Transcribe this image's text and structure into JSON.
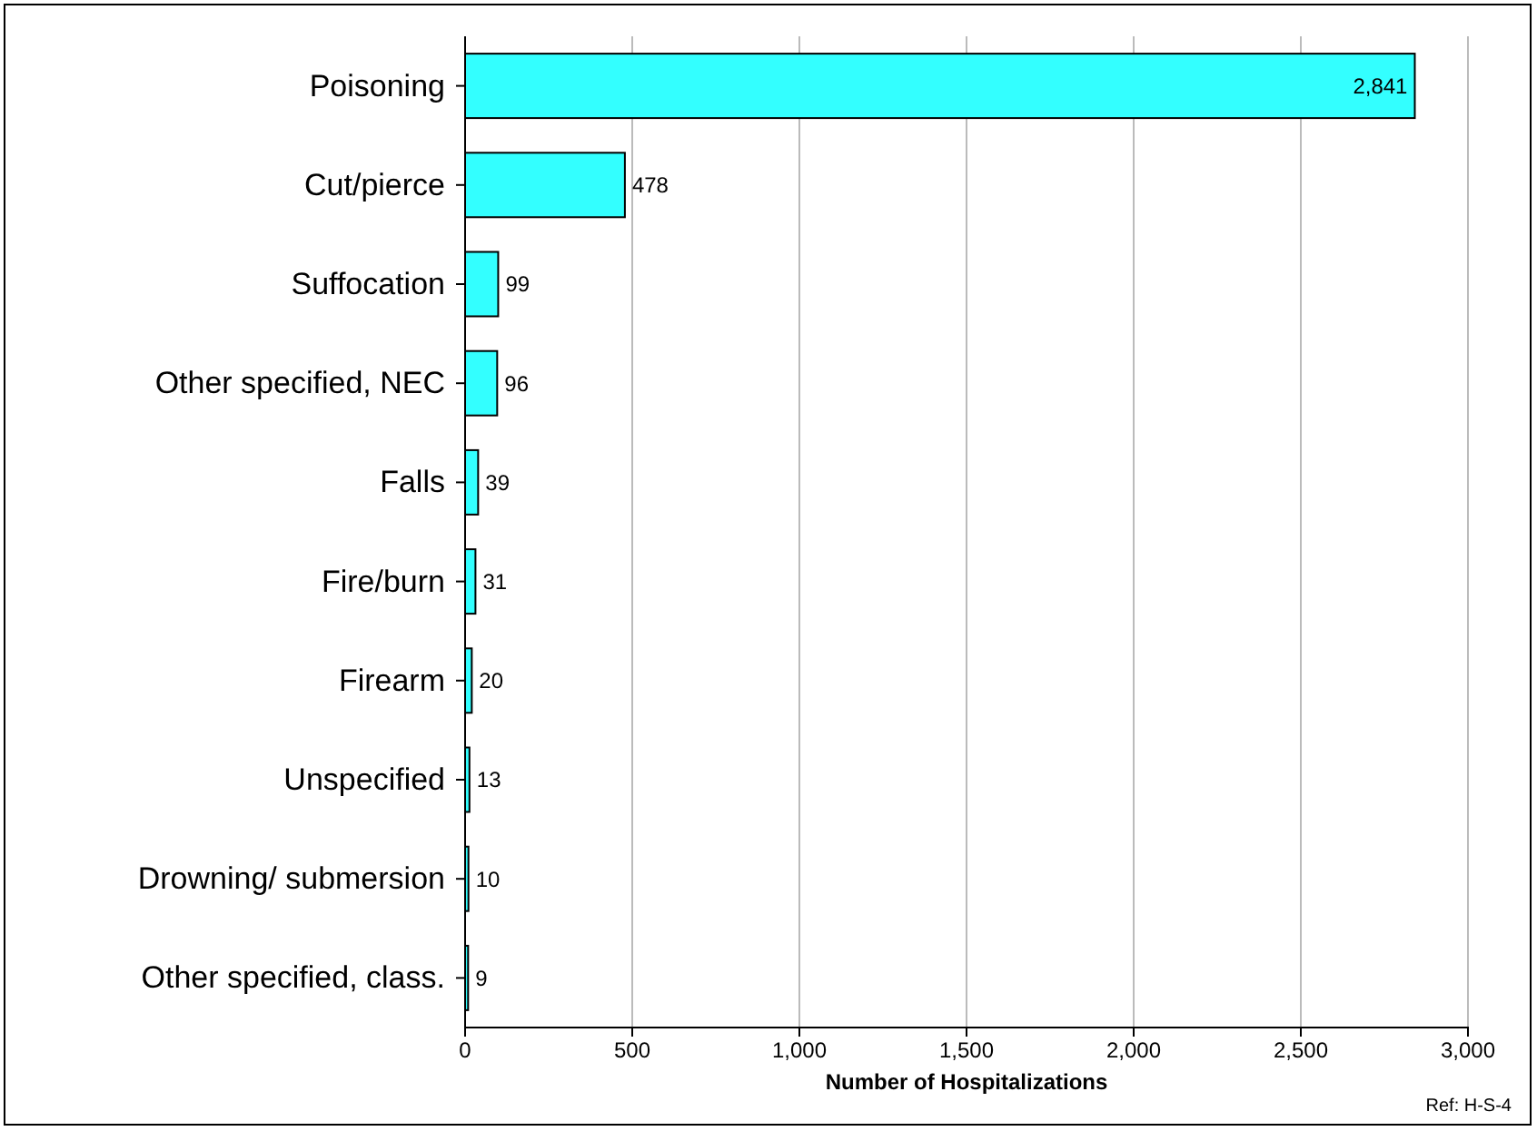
{
  "chart_data": {
    "type": "bar",
    "orientation": "horizontal",
    "categories": [
      "Poisoning",
      "Cut/pierce",
      "Suffocation",
      "Other specified, NEC",
      "Falls",
      "Fire/burn",
      "Firearm",
      "Unspecified",
      "Drowning/ submersion",
      "Other specified, class."
    ],
    "values": [
      2841,
      478,
      99,
      96,
      39,
      31,
      20,
      13,
      10,
      9
    ],
    "value_labels": [
      "2,841",
      "478",
      "99",
      "96",
      "39",
      "31",
      "20",
      "13",
      "10",
      "9"
    ],
    "color": "#33ffff",
    "xlabel": "Number of Hospitalizations",
    "xlim": [
      0,
      3000
    ],
    "xticks": [
      0,
      {
        "value": 500,
        "label": "500"
      },
      {
        "value": 1000,
        "label": "1,000"
      },
      {
        "value": 1500,
        "label": "1,500"
      },
      {
        "value": 2000,
        "label": "2,000"
      },
      {
        "value": 2500,
        "label": "2,500"
      },
      {
        "value": 3000,
        "label": "3,000"
      }
    ],
    "grid": "x",
    "annotations": [
      "Ref: H-S-4"
    ]
  }
}
